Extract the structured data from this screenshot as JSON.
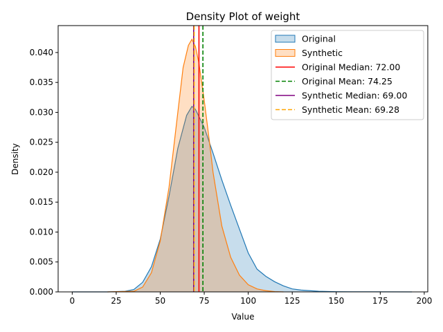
{
  "chart_data": {
    "type": "area",
    "title": "Density Plot of weight",
    "xlabel": "Value",
    "ylabel": "Density",
    "xlim": [
      -8,
      202
    ],
    "ylim": [
      0,
      0.0445
    ],
    "xticks": [
      0,
      25,
      50,
      75,
      100,
      125,
      150,
      175,
      200
    ],
    "yticks": [
      0.0,
      0.005,
      0.01,
      0.015,
      0.02,
      0.025,
      0.03,
      0.035,
      0.04
    ],
    "ytick_labels": [
      "0.000",
      "0.005",
      "0.010",
      "0.015",
      "0.020",
      "0.025",
      "0.030",
      "0.035",
      "0.040"
    ],
    "legend_position": "top-right",
    "grid": false,
    "series": [
      {
        "name": "Original",
        "color": "#1f77b4",
        "fill": "#1f77b4",
        "points": [
          [
            0,
            0
          ],
          [
            20,
            0
          ],
          [
            30,
            0.0001
          ],
          [
            35,
            0.0004
          ],
          [
            40,
            0.0016
          ],
          [
            45,
            0.0042
          ],
          [
            50,
            0.0088
          ],
          [
            55,
            0.016
          ],
          [
            60,
            0.024
          ],
          [
            65,
            0.0295
          ],
          [
            68,
            0.031
          ],
          [
            70,
            0.0305
          ],
          [
            72,
            0.0293
          ],
          [
            75,
            0.0275
          ],
          [
            80,
            0.0232
          ],
          [
            85,
            0.0187
          ],
          [
            90,
            0.0145
          ],
          [
            95,
            0.0105
          ],
          [
            100,
            0.0065
          ],
          [
            105,
            0.0038
          ],
          [
            110,
            0.0026
          ],
          [
            115,
            0.0017
          ],
          [
            120,
            0.001
          ],
          [
            125,
            0.0005
          ],
          [
            130,
            0.0003
          ],
          [
            140,
            0.0001
          ],
          [
            150,
            3e-05
          ],
          [
            170,
            1e-05
          ],
          [
            193,
            0
          ]
        ]
      },
      {
        "name": "Synthetic",
        "color": "#ff7f0e",
        "fill": "#ff7f0e",
        "points": [
          [
            20,
            0
          ],
          [
            35,
            0.0001
          ],
          [
            40,
            0.0008
          ],
          [
            45,
            0.0032
          ],
          [
            50,
            0.0085
          ],
          [
            55,
            0.0175
          ],
          [
            60,
            0.03
          ],
          [
            63,
            0.0375
          ],
          [
            66,
            0.0412
          ],
          [
            68,
            0.0422
          ],
          [
            70,
            0.041
          ],
          [
            72,
            0.0382
          ],
          [
            75,
            0.032
          ],
          [
            78,
            0.025
          ],
          [
            80,
            0.02
          ],
          [
            85,
            0.011
          ],
          [
            90,
            0.0058
          ],
          [
            95,
            0.0028
          ],
          [
            100,
            0.0012
          ],
          [
            105,
            0.0005
          ],
          [
            110,
            0.0002
          ],
          [
            115,
            5e-05
          ],
          [
            120,
            0
          ]
        ]
      }
    ],
    "vlines": [
      {
        "name": "Original Median: 72.00",
        "x": 72.0,
        "color": "#ff0000",
        "dash": "solid"
      },
      {
        "name": "Original Mean: 74.25",
        "x": 74.25,
        "color": "#008000",
        "dash": "dashed"
      },
      {
        "name": "Synthetic Median: 69.00",
        "x": 69.0,
        "color": "#800080",
        "dash": "solid"
      },
      {
        "name": "Synthetic Mean: 69.28",
        "x": 69.28,
        "color": "#ffa500",
        "dash": "dashed"
      }
    ]
  }
}
